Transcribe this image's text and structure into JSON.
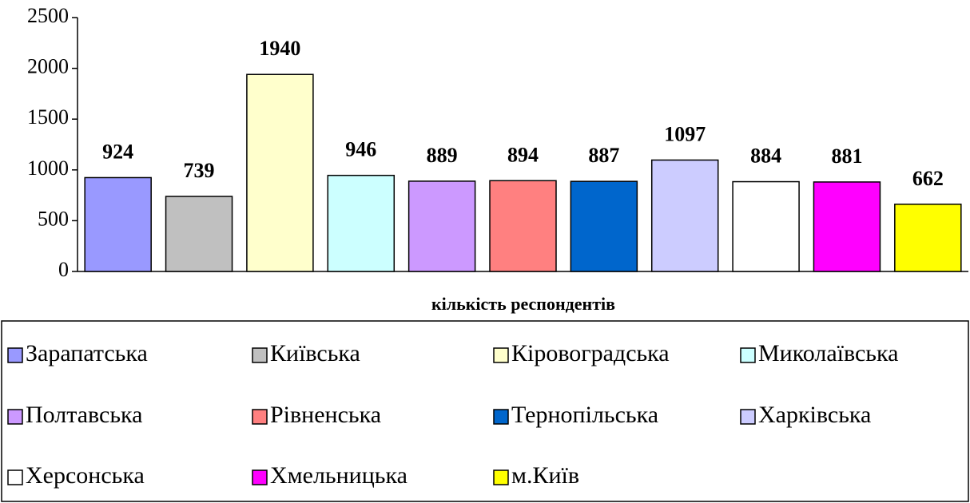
{
  "chart_data": {
    "type": "bar",
    "x_label": "кількість респондентів",
    "ylim": [
      0,
      2500
    ],
    "yticks": [
      0,
      500,
      1000,
      1500,
      2000,
      2500
    ],
    "legend": "bottom",
    "series": [
      {
        "name": "Зарапатська",
        "color": "#9999ff",
        "values": [
          924
        ]
      },
      {
        "name": "Київська",
        "color": "#c0c0c0",
        "values": [
          739
        ]
      },
      {
        "name": "Кіровоградська",
        "color": "#ffffcc",
        "values": [
          1940
        ]
      },
      {
        "name": "Миколаївська",
        "color": "#ccffff",
        "values": [
          946
        ]
      },
      {
        "name": "Полтавська",
        "color": "#cc99ff",
        "values": [
          889
        ]
      },
      {
        "name": "Рівненська",
        "color": "#ff8080",
        "values": [
          894
        ]
      },
      {
        "name": "Тернопільська",
        "color": "#0066cc",
        "values": [
          887
        ]
      },
      {
        "name": "Харківська",
        "color": "#ccccff",
        "values": [
          1097
        ]
      },
      {
        "name": "Херсонська",
        "color": "#ffffff",
        "values": [
          884
        ]
      },
      {
        "name": "Хмельницька",
        "color": "#ff00ff",
        "values": [
          881
        ]
      },
      {
        "name": "м.Київ",
        "color": "#ffff00",
        "values": [
          662
        ]
      }
    ]
  }
}
